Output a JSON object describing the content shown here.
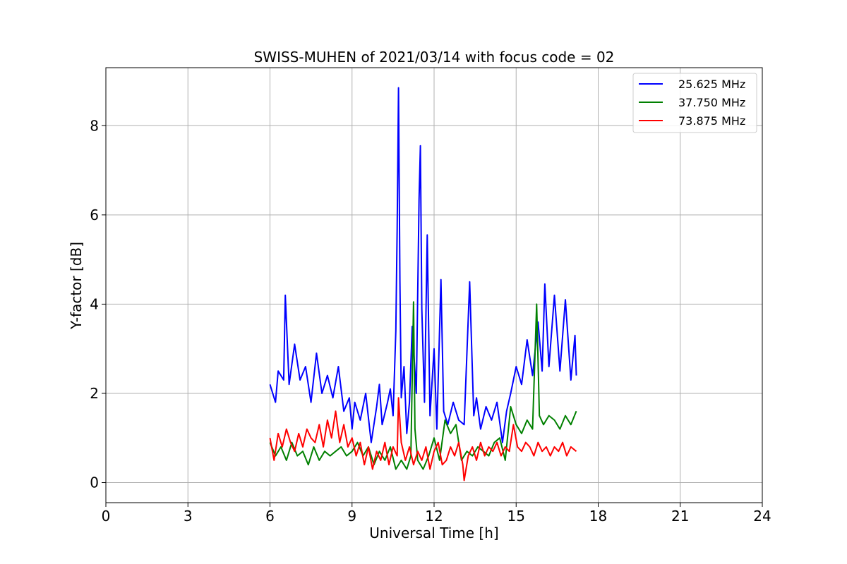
{
  "chart_data": {
    "type": "line",
    "title": "SWISS-MUHEN of 2021/03/14 with focus code = 02",
    "xlabel": "Universal Time [h]",
    "ylabel": "Y-factor [dB]",
    "xlim": [
      0,
      24
    ],
    "ylim": [
      -0.45,
      9.3
    ],
    "xticks": [
      0,
      3,
      6,
      9,
      12,
      15,
      18,
      21,
      24
    ],
    "yticks": [
      0,
      2,
      4,
      6,
      8
    ],
    "grid": true,
    "legend_position": "top-right",
    "series": [
      {
        "name": "25.625 MHz",
        "color": "#0000ff",
        "x": [
          6.0,
          6.1,
          6.2,
          6.3,
          6.5,
          6.56,
          6.7,
          6.9,
          7.1,
          7.3,
          7.5,
          7.7,
          7.9,
          8.1,
          8.3,
          8.5,
          8.7,
          8.9,
          9.0,
          9.1,
          9.3,
          9.5,
          9.7,
          9.9,
          10.0,
          10.1,
          10.3,
          10.4,
          10.5,
          10.6,
          10.65,
          10.7,
          10.75,
          10.8,
          10.9,
          11.0,
          11.1,
          11.2,
          11.35,
          11.45,
          11.5,
          11.55,
          11.65,
          11.75,
          11.85,
          12.0,
          12.1,
          12.25,
          12.35,
          12.5,
          12.7,
          12.9,
          13.1,
          13.3,
          13.45,
          13.55,
          13.7,
          13.9,
          14.1,
          14.3,
          14.5,
          14.65,
          14.8,
          15.0,
          15.2,
          15.4,
          15.6,
          15.8,
          15.95,
          16.05,
          16.2,
          16.4,
          16.6,
          16.8,
          17.0,
          17.15,
          17.2
        ],
        "y": [
          2.2,
          2.0,
          1.8,
          2.5,
          2.3,
          4.2,
          2.2,
          3.1,
          2.3,
          2.6,
          1.8,
          2.9,
          2.0,
          2.4,
          1.9,
          2.6,
          1.6,
          1.9,
          1.2,
          1.8,
          1.4,
          2.0,
          0.9,
          1.7,
          2.2,
          1.3,
          1.8,
          2.1,
          1.5,
          3.4,
          5.7,
          8.85,
          4.5,
          1.9,
          2.6,
          1.1,
          1.8,
          3.5,
          2.0,
          6.35,
          7.55,
          3.9,
          1.8,
          5.55,
          1.5,
          3.0,
          1.2,
          4.55,
          1.6,
          1.3,
          1.8,
          1.4,
          1.3,
          4.5,
          1.5,
          1.9,
          1.2,
          1.7,
          1.4,
          1.8,
          0.9,
          1.6,
          2.0,
          2.6,
          2.2,
          3.2,
          2.4,
          3.6,
          2.5,
          4.45,
          2.6,
          4.2,
          2.5,
          4.1,
          2.3,
          3.3,
          2.4
        ]
      },
      {
        "name": "37.750 MHz",
        "color": "#008000",
        "x": [
          6.0,
          6.2,
          6.4,
          6.6,
          6.8,
          7.0,
          7.2,
          7.4,
          7.6,
          7.8,
          8.0,
          8.2,
          8.4,
          8.6,
          8.8,
          9.0,
          9.2,
          9.4,
          9.6,
          9.8,
          10.0,
          10.2,
          10.4,
          10.6,
          10.8,
          11.0,
          11.15,
          11.25,
          11.3,
          11.4,
          11.6,
          11.8,
          12.0,
          12.2,
          12.4,
          12.6,
          12.8,
          13.0,
          13.2,
          13.4,
          13.6,
          13.8,
          14.0,
          14.2,
          14.4,
          14.6,
          14.8,
          15.0,
          15.2,
          15.4,
          15.6,
          15.75,
          15.85,
          16.0,
          16.2,
          16.4,
          16.6,
          16.8,
          17.0,
          17.2
        ],
        "y": [
          0.9,
          0.6,
          0.8,
          0.5,
          0.9,
          0.6,
          0.7,
          0.4,
          0.8,
          0.5,
          0.7,
          0.6,
          0.7,
          0.8,
          0.6,
          0.7,
          0.9,
          0.6,
          0.8,
          0.4,
          0.7,
          0.5,
          0.8,
          0.3,
          0.5,
          0.3,
          0.6,
          4.05,
          1.2,
          0.5,
          0.3,
          0.6,
          1.0,
          0.5,
          1.4,
          1.1,
          1.3,
          0.5,
          0.7,
          0.6,
          0.8,
          0.7,
          0.6,
          0.9,
          1.0,
          0.5,
          1.7,
          1.3,
          1.1,
          1.4,
          1.2,
          4.0,
          1.5,
          1.3,
          1.5,
          1.4,
          1.2,
          1.5,
          1.3,
          1.6
        ]
      },
      {
        "name": "73.875 MHz",
        "color": "#ff0000",
        "x": [
          6.0,
          6.15,
          6.3,
          6.45,
          6.6,
          6.75,
          6.9,
          7.05,
          7.2,
          7.35,
          7.5,
          7.65,
          7.8,
          7.95,
          8.1,
          8.25,
          8.4,
          8.55,
          8.7,
          8.85,
          9.0,
          9.15,
          9.3,
          9.45,
          9.6,
          9.75,
          9.9,
          10.05,
          10.2,
          10.35,
          10.5,
          10.65,
          10.7,
          10.8,
          10.95,
          11.1,
          11.25,
          11.4,
          11.55,
          11.7,
          11.85,
          12.0,
          12.15,
          12.3,
          12.45,
          12.6,
          12.75,
          12.9,
          13.05,
          13.1,
          13.25,
          13.4,
          13.55,
          13.7,
          13.85,
          14.0,
          14.15,
          14.3,
          14.45,
          14.6,
          14.75,
          14.9,
          15.05,
          15.2,
          15.35,
          15.5,
          15.65,
          15.8,
          15.95,
          16.1,
          16.25,
          16.4,
          16.55,
          16.7,
          16.85,
          17.0,
          17.2
        ],
        "y": [
          1.0,
          0.5,
          1.1,
          0.8,
          1.2,
          0.9,
          0.7,
          1.1,
          0.8,
          1.2,
          1.0,
          0.9,
          1.3,
          0.8,
          1.4,
          1.0,
          1.6,
          0.9,
          1.3,
          0.8,
          1.0,
          0.6,
          0.9,
          0.4,
          0.8,
          0.3,
          0.7,
          0.5,
          0.9,
          0.4,
          0.8,
          0.6,
          1.9,
          0.9,
          0.5,
          0.8,
          0.4,
          0.7,
          0.5,
          0.8,
          0.3,
          0.7,
          0.9,
          0.4,
          0.5,
          0.8,
          0.6,
          0.9,
          0.4,
          0.05,
          0.6,
          0.8,
          0.5,
          0.9,
          0.6,
          0.8,
          0.7,
          0.9,
          0.6,
          0.8,
          0.7,
          1.3,
          0.8,
          0.7,
          0.9,
          0.8,
          0.6,
          0.9,
          0.7,
          0.8,
          0.6,
          0.8,
          0.7,
          0.9,
          0.6,
          0.8,
          0.7
        ]
      }
    ]
  }
}
